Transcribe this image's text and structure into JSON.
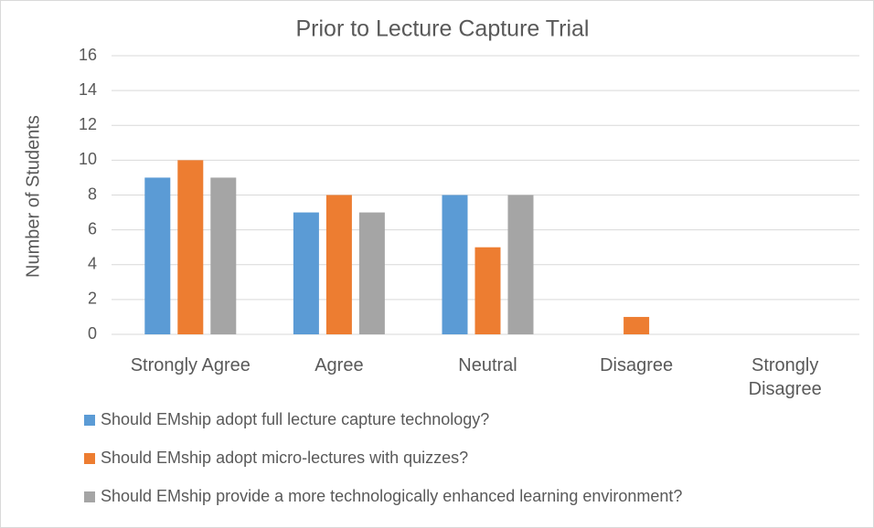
{
  "chart_data": {
    "type": "bar",
    "title": "Prior to Lecture Capture Trial",
    "ylabel": "Number of Students",
    "categories": [
      "Strongly Agree",
      "Agree",
      "Neutral",
      "Disagree",
      "Strongly Disagree"
    ],
    "series": [
      {
        "name": "Should EMship adopt full lecture capture technology?",
        "color": "#5b9bd5",
        "values": [
          9,
          7,
          8,
          0,
          0
        ]
      },
      {
        "name": "Should EMship adopt micro-lectures with quizzes?",
        "color": "#ed7d31",
        "values": [
          10,
          8,
          5,
          1,
          0
        ]
      },
      {
        "name": "Should EMship provide a more technologically enhanced learning environment?",
        "color": "#a5a5a5",
        "values": [
          9,
          7,
          8,
          0,
          0
        ]
      }
    ],
    "ylim": [
      0,
      16
    ],
    "yticks": [
      0,
      2,
      4,
      6,
      8,
      10,
      12,
      14,
      16
    ],
    "grid": true,
    "legend": "bottom"
  }
}
